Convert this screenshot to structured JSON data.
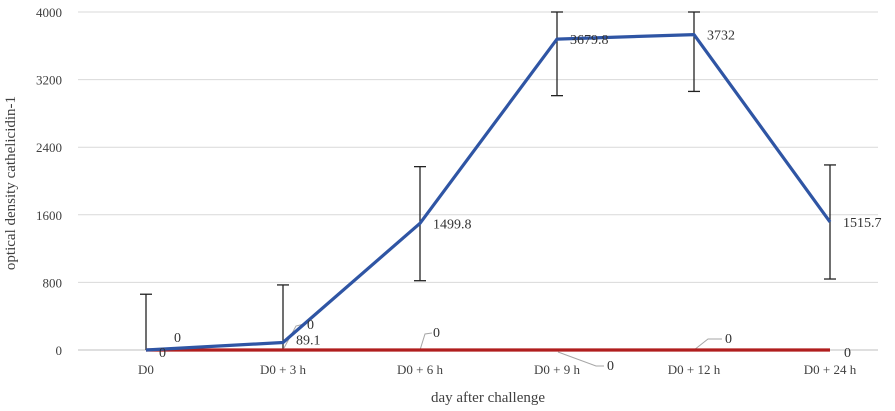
{
  "chart_data": {
    "type": "line",
    "title": "",
    "xlabel": "day after challenge",
    "ylabel": "optical density cathelicidin-1",
    "categories": [
      "D0",
      "D0 + 3 h",
      "D0 + 6 h",
      "D0 + 9 h",
      "D0 + 12 h",
      "D0 + 24 h"
    ],
    "ylim": [
      0,
      4000
    ],
    "yticks": [
      0,
      800,
      1600,
      2400,
      3200,
      4000
    ],
    "grid": "horizontal",
    "legend": "none",
    "series": [
      {
        "color": "#2F55A4",
        "values": [
          0,
          89.1,
          1499.8,
          3679.8,
          3732,
          1515.7
        ],
        "data_labels": [
          "0",
          "89.1",
          "1499.8",
          "3679.8",
          "3732",
          "1515.7"
        ],
        "error_high": [
          660,
          770,
          2170,
          4000,
          4000,
          2190
        ],
        "error_low": [
          0,
          0,
          820,
          3010,
          3060,
          840
        ]
      },
      {
        "color": "#B01E1E",
        "values": [
          0,
          0,
          0,
          0,
          0,
          0
        ],
        "data_labels": [
          "0",
          "0",
          "0",
          "0",
          "0",
          "0"
        ]
      }
    ]
  }
}
